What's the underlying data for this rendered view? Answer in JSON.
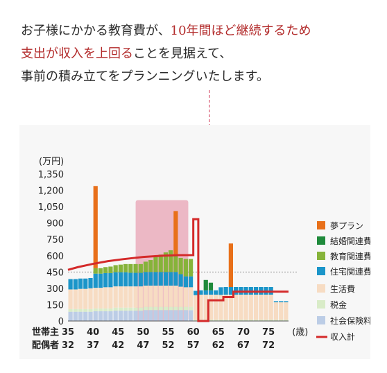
{
  "intro": {
    "line1_a": "お子様にかかる教育費が、",
    "line1_b": "10年間ほど継続するため",
    "line2_a": "支出が収入を上回る",
    "line2_b": "ことを見据えて、",
    "line3": "事前の積み立てをプランニングいたします。"
  },
  "colors": {
    "dream": "#e8701a",
    "marriage": "#1f8a3b",
    "education": "#86b33a",
    "housing": "#1b95c9",
    "living": "#f7dcc3",
    "tax": "#d9ecc8",
    "social": "#bccde6",
    "income": "#d42a2a",
    "highlight": "#e8a3b4"
  },
  "chart_data": {
    "type": "bar",
    "stacked": true,
    "title": "",
    "ylabel": "(万円)",
    "ylim": [
      0,
      1350
    ],
    "yticks": [
      0,
      150,
      300,
      450,
      600,
      750,
      900,
      1050,
      1200,
      1350
    ],
    "ytick_labels": [
      "0",
      "150",
      "300",
      "450",
      "600",
      "750",
      "900",
      "1,050",
      "1,200",
      "1,350"
    ],
    "x_unit": "(歳)",
    "x_rows": [
      {
        "label": "世帯主",
        "ticks": [
          "35",
          "40",
          "45",
          "50",
          "55",
          "60",
          "65",
          "70",
          "75"
        ]
      },
      {
        "label": "配偶者",
        "ticks": [
          "32",
          "37",
          "42",
          "47",
          "52",
          "57",
          "62",
          "67",
          "72"
        ]
      }
    ],
    "x_start_age": 35,
    "x_end_age": 79,
    "years": [
      35,
      36,
      37,
      38,
      39,
      40,
      41,
      42,
      43,
      44,
      45,
      46,
      47,
      48,
      49,
      50,
      51,
      52,
      53,
      54,
      55,
      56,
      57,
      58,
      59,
      60,
      61,
      62,
      63,
      64,
      65,
      66,
      67,
      68,
      69,
      70,
      71,
      72,
      73,
      74,
      75,
      76,
      77,
      78
    ],
    "series": [
      {
        "name": "社会保険料",
        "color_key": "social",
        "values": [
          85,
          85,
          85,
          85,
          85,
          90,
          90,
          90,
          90,
          95,
          95,
          95,
          95,
          95,
          95,
          100,
          100,
          100,
          100,
          100,
          100,
          100,
          100,
          100,
          100,
          0,
          0,
          0,
          0,
          0,
          0,
          0,
          0,
          0,
          0,
          0,
          0,
          0,
          0,
          0,
          0,
          0,
          0,
          0
        ]
      },
      {
        "name": "税金",
        "color_key": "tax",
        "values": [
          25,
          25,
          25,
          25,
          25,
          25,
          25,
          25,
          25,
          28,
          28,
          28,
          28,
          28,
          28,
          30,
          30,
          30,
          30,
          30,
          30,
          30,
          30,
          30,
          30,
          12,
          12,
          12,
          12,
          12,
          12,
          12,
          12,
          12,
          12,
          12,
          12,
          12,
          12,
          12,
          12,
          12,
          12,
          12
        ]
      },
      {
        "name": "生活費",
        "color_key": "living",
        "values": [
          180,
          180,
          185,
          185,
          190,
          190,
          190,
          195,
          195,
          195,
          195,
          195,
          195,
          195,
          195,
          195,
          195,
          195,
          195,
          195,
          195,
          195,
          185,
          180,
          180,
          225,
          230,
          230,
          230,
          230,
          228,
          230,
          230,
          230,
          230,
          230,
          230,
          230,
          230,
          230,
          230,
          160,
          160,
          160
        ]
      },
      {
        "name": "住宅関連費用",
        "color_key": "housing",
        "values": [
          95,
          95,
          95,
          95,
          95,
          130,
          130,
          130,
          130,
          130,
          130,
          130,
          125,
          125,
          125,
          125,
          125,
          125,
          125,
          125,
          125,
          125,
          115,
          100,
          100,
          40,
          40,
          40,
          40,
          40,
          70,
          70,
          70,
          70,
          70,
          70,
          70,
          70,
          70,
          70,
          70,
          10,
          10,
          10
        ]
      },
      {
        "name": "教育関連費用",
        "color_key": "education",
        "values": [
          0,
          0,
          0,
          0,
          0,
          50,
          50,
          55,
          60,
          65,
          70,
          75,
          80,
          80,
          80,
          95,
          110,
          140,
          160,
          180,
          200,
          150,
          150,
          160,
          160,
          0,
          0,
          0,
          0,
          0,
          0,
          0,
          0,
          0,
          0,
          0,
          0,
          0,
          0,
          0,
          0,
          0,
          0,
          0
        ]
      },
      {
        "name": "結婚関連費用",
        "color_key": "marriage",
        "values": [
          0,
          0,
          0,
          0,
          0,
          0,
          0,
          0,
          0,
          0,
          0,
          0,
          0,
          0,
          0,
          0,
          0,
          0,
          0,
          0,
          0,
          0,
          0,
          0,
          0,
          0,
          0,
          95,
          70,
          0,
          0,
          0,
          0,
          0,
          0,
          0,
          0,
          0,
          0,
          0,
          0,
          0,
          0,
          0
        ]
      },
      {
        "name": "夢プラン",
        "color_key": "dream",
        "values": [
          0,
          0,
          0,
          0,
          0,
          755,
          0,
          0,
          0,
          0,
          0,
          0,
          0,
          0,
          0,
          0,
          0,
          0,
          0,
          0,
          0,
          410,
          0,
          0,
          0,
          0,
          0,
          0,
          0,
          0,
          0,
          0,
          400,
          0,
          0,
          0,
          0,
          0,
          0,
          0,
          0,
          0,
          0,
          0
        ]
      }
    ],
    "income": {
      "name": "収入計",
      "points": [
        [
          35,
          470
        ],
        [
          37,
          495
        ],
        [
          40,
          525
        ],
        [
          43,
          550
        ],
        [
          46,
          568
        ],
        [
          50,
          588
        ],
        [
          54,
          600
        ],
        [
          57,
          605
        ],
        [
          60,
          605
        ],
        [
          60,
          935
        ],
        [
          61,
          935
        ],
        [
          61,
          0
        ],
        [
          63,
          0
        ],
        [
          63,
          190
        ],
        [
          66,
          190
        ],
        [
          66,
          220
        ],
        [
          68,
          220
        ],
        [
          68,
          270
        ],
        [
          79,
          270
        ]
      ]
    },
    "highlight_range": [
      48.5,
      59
    ],
    "legend": [
      "夢プラン",
      "結婚関連費用",
      "教育関連費用",
      "住宅関連費用",
      "生活費",
      "税金",
      "社会保険料",
      "収入計"
    ],
    "legend_position": "right"
  }
}
